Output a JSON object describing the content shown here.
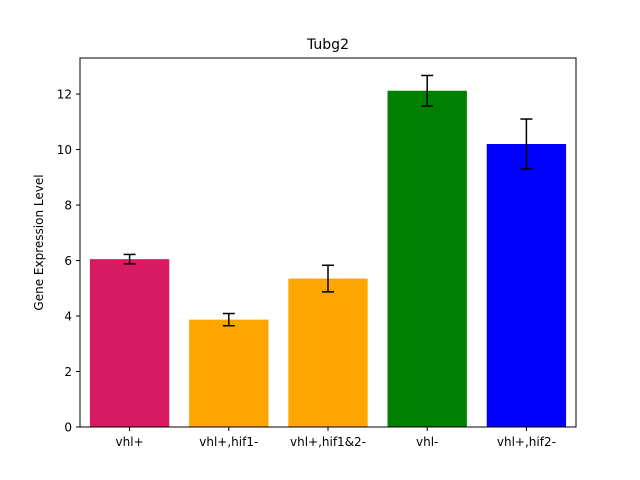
{
  "chart_data": {
    "type": "bar",
    "title": "Tubg2",
    "xlabel": "",
    "ylabel": "Gene Expression Level",
    "ylim": [
      0,
      13.3
    ],
    "yticks": [
      0,
      2,
      4,
      6,
      8,
      10,
      12
    ],
    "categories": [
      "vhl+",
      "vhl+,hif1-",
      "vhl+,hif1&2-",
      "vhl-",
      "vhl+,hif2-"
    ],
    "values": [
      6.05,
      3.87,
      5.35,
      12.12,
      10.2
    ],
    "errors": [
      0.17,
      0.22,
      0.48,
      0.55,
      0.9
    ],
    "colors": [
      "#d81b60",
      "#ffa500",
      "#ffa500",
      "#008000",
      "#0000ff"
    ],
    "grid": false,
    "legend": "none"
  }
}
